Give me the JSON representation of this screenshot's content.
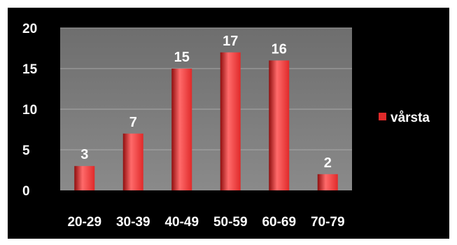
{
  "chart_data": {
    "type": "bar",
    "categories": [
      "20-29",
      "30-39",
      "40-49",
      "50-59",
      "60-69",
      "70-79"
    ],
    "series": [
      {
        "name": "vårsta",
        "values": [
          3,
          7,
          15,
          17,
          16,
          2
        ]
      }
    ],
    "ylim": [
      0,
      20
    ],
    "yticks": [
      0,
      5,
      10,
      15,
      20
    ],
    "grid": true,
    "data_labels": true,
    "legend_position": "right",
    "colors": {
      "bar": "#e02a2a",
      "bar_dark": "#8f0f0f",
      "bar_light": "#ff6a6a",
      "plot_background": "#7a7a7a",
      "background": "#000000",
      "gridline": "#a8a8a8",
      "text": "#ffffff"
    }
  }
}
